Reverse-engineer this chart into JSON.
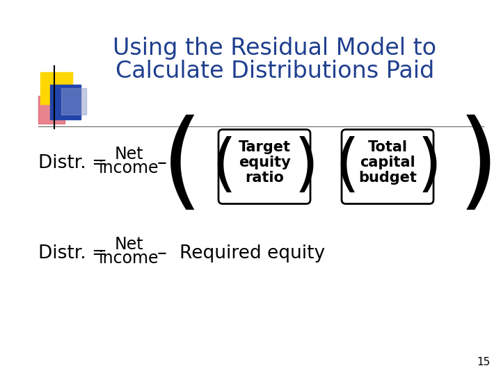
{
  "title_line1": "Using the Residual Model to",
  "title_line2": "Calculate Distributions Paid",
  "title_color": "#1F3F8F",
  "bg_color": "#FFFFFF",
  "slide_number": "15",
  "accent_yellow": "#FFD700",
  "accent_red": "#E05060",
  "accent_blue": "#2244AA",
  "accent_lightblue": "#8899CC",
  "eq1_distr": "Distr. =",
  "eq1_net": "Net",
  "eq1_income": "income",
  "eq1_minus": "–",
  "eq1_box1_line1": "Target",
  "eq1_box1_line2": "equity",
  "eq1_box1_line3": "ratio",
  "eq1_box2_line1": "Total",
  "eq1_box2_line2": "capital",
  "eq1_box2_line3": "budget",
  "eq2_distr": "Distr. =",
  "eq2_net": "Net",
  "eq2_income": "income",
  "eq2_minus": "–",
  "eq2_required": "Required equity",
  "text_color": "#000000"
}
